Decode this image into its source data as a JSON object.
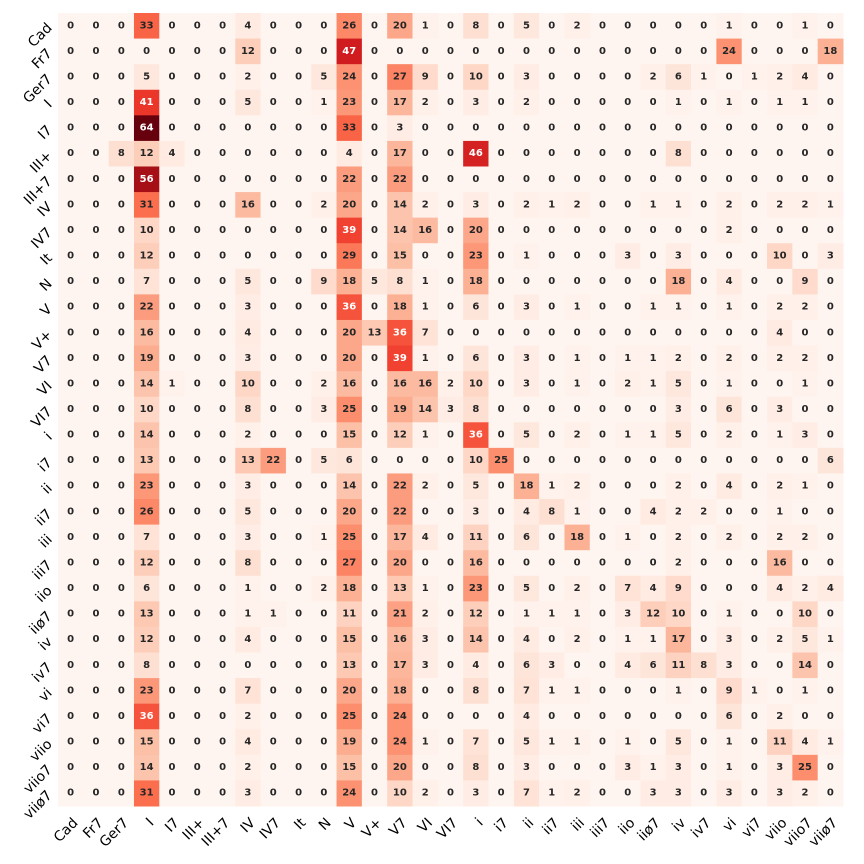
{
  "chart_data": {
    "type": "heatmap",
    "title": "",
    "xlabel": "",
    "ylabel": "",
    "legend": "none",
    "grid": false,
    "value_labels": true,
    "colormap": "Reds",
    "vmin": 0,
    "vmax": 64,
    "low_color": "#fff5f0",
    "high_color": "#67000d",
    "x_categories": [
      "Cad",
      "Fr7",
      "Ger7",
      "I",
      "I7",
      "III+",
      "III+7",
      "IV",
      "IV7",
      "It",
      "N",
      "V",
      "V+",
      "V7",
      "VI",
      "VI7",
      "i",
      "i7",
      "ii",
      "ii7",
      "iii",
      "iii7",
      "iio",
      "iiø7",
      "iv",
      "iv7",
      "vi",
      "vi7",
      "viio",
      "viio7",
      "viiø7"
    ],
    "y_categories": [
      "Cad",
      "Fr7",
      "Ger7",
      "I",
      "I7",
      "III+",
      "III+7",
      "IV",
      "IV7",
      "It",
      "N",
      "V",
      "V+",
      "V7",
      "VI",
      "VI7",
      "i",
      "i7",
      "ii",
      "ii7",
      "iii",
      "iii7",
      "iio",
      "iiø7",
      "iv",
      "iv7",
      "vi",
      "vi7",
      "viio",
      "viio7",
      "viiø7"
    ],
    "values": [
      [
        0,
        0,
        0,
        33,
        0,
        0,
        0,
        4,
        0,
        0,
        0,
        26,
        0,
        20,
        1,
        0,
        8,
        0,
        5,
        0,
        2,
        0,
        0,
        0,
        0,
        0,
        1,
        0,
        0,
        1,
        0
      ],
      [
        0,
        0,
        0,
        0,
        0,
        0,
        0,
        12,
        0,
        0,
        0,
        47,
        0,
        0,
        0,
        0,
        0,
        0,
        0,
        0,
        0,
        0,
        0,
        0,
        0,
        0,
        24,
        0,
        0,
        0,
        18
      ],
      [
        0,
        0,
        0,
        5,
        0,
        0,
        0,
        2,
        0,
        0,
        5,
        24,
        0,
        27,
        9,
        0,
        10,
        0,
        3,
        0,
        0,
        0,
        0,
        2,
        6,
        1,
        0,
        1,
        2,
        4,
        0
      ],
      [
        0,
        0,
        0,
        41,
        0,
        0,
        0,
        5,
        0,
        0,
        1,
        23,
        0,
        17,
        2,
        0,
        3,
        0,
        2,
        0,
        0,
        0,
        0,
        0,
        1,
        0,
        1,
        0,
        1,
        1,
        0
      ],
      [
        0,
        0,
        0,
        64,
        0,
        0,
        0,
        0,
        0,
        0,
        0,
        33,
        0,
        3,
        0,
        0,
        0,
        0,
        0,
        0,
        0,
        0,
        0,
        0,
        0,
        0,
        0,
        0,
        0,
        0,
        0
      ],
      [
        0,
        0,
        8,
        12,
        4,
        0,
        0,
        0,
        0,
        0,
        0,
        4,
        0,
        17,
        0,
        0,
        46,
        0,
        0,
        0,
        0,
        0,
        0,
        0,
        8,
        0,
        0,
        0,
        0,
        0,
        0
      ],
      [
        0,
        0,
        0,
        56,
        0,
        0,
        0,
        0,
        0,
        0,
        0,
        22,
        0,
        22,
        0,
        0,
        0,
        0,
        0,
        0,
        0,
        0,
        0,
        0,
        0,
        0,
        0,
        0,
        0,
        0,
        0
      ],
      [
        0,
        0,
        0,
        31,
        0,
        0,
        0,
        16,
        0,
        0,
        2,
        20,
        0,
        14,
        2,
        0,
        3,
        0,
        2,
        1,
        2,
        0,
        0,
        1,
        1,
        0,
        2,
        0,
        2,
        2,
        1
      ],
      [
        0,
        0,
        0,
        10,
        0,
        0,
        0,
        0,
        0,
        0,
        0,
        39,
        0,
        14,
        16,
        0,
        20,
        0,
        0,
        0,
        0,
        0,
        0,
        0,
        0,
        0,
        2,
        0,
        0,
        0,
        0
      ],
      [
        0,
        0,
        0,
        12,
        0,
        0,
        0,
        0,
        0,
        0,
        0,
        29,
        0,
        15,
        0,
        0,
        23,
        0,
        1,
        0,
        0,
        0,
        3,
        0,
        3,
        0,
        0,
        0,
        10,
        0,
        3
      ],
      [
        0,
        0,
        0,
        7,
        0,
        0,
        0,
        5,
        0,
        0,
        9,
        18,
        5,
        8,
        1,
        0,
        18,
        0,
        0,
        0,
        0,
        0,
        0,
        0,
        18,
        0,
        4,
        0,
        0,
        9,
        0
      ],
      [
        0,
        0,
        0,
        22,
        0,
        0,
        0,
        3,
        0,
        0,
        0,
        36,
        0,
        18,
        1,
        0,
        6,
        0,
        3,
        0,
        1,
        0,
        0,
        1,
        1,
        0,
        1,
        0,
        2,
        2,
        0
      ],
      [
        0,
        0,
        0,
        16,
        0,
        0,
        0,
        4,
        0,
        0,
        0,
        20,
        13,
        36,
        7,
        0,
        0,
        0,
        0,
        0,
        0,
        0,
        0,
        0,
        0,
        0,
        0,
        0,
        4,
        0,
        0
      ],
      [
        0,
        0,
        0,
        19,
        0,
        0,
        0,
        3,
        0,
        0,
        0,
        20,
        0,
        39,
        1,
        0,
        6,
        0,
        3,
        0,
        1,
        0,
        1,
        1,
        2,
        0,
        2,
        0,
        2,
        2,
        0
      ],
      [
        0,
        0,
        0,
        14,
        1,
        0,
        0,
        10,
        0,
        0,
        2,
        16,
        0,
        16,
        16,
        2,
        10,
        0,
        3,
        0,
        1,
        0,
        2,
        1,
        5,
        0,
        1,
        0,
        0,
        1,
        0
      ],
      [
        0,
        0,
        0,
        10,
        0,
        0,
        0,
        8,
        0,
        0,
        3,
        25,
        0,
        19,
        14,
        3,
        8,
        0,
        0,
        0,
        0,
        0,
        0,
        0,
        3,
        0,
        6,
        0,
        3,
        0,
        0
      ],
      [
        0,
        0,
        0,
        14,
        0,
        0,
        0,
        2,
        0,
        0,
        0,
        15,
        0,
        12,
        1,
        0,
        36,
        0,
        5,
        0,
        2,
        0,
        1,
        1,
        5,
        0,
        2,
        0,
        1,
        3,
        0
      ],
      [
        0,
        0,
        0,
        13,
        0,
        0,
        0,
        13,
        22,
        0,
        5,
        6,
        0,
        0,
        0,
        0,
        10,
        25,
        0,
        0,
        0,
        0,
        0,
        0,
        0,
        0,
        0,
        0,
        0,
        0,
        6
      ],
      [
        0,
        0,
        0,
        23,
        0,
        0,
        0,
        3,
        0,
        0,
        0,
        14,
        0,
        22,
        2,
        0,
        5,
        0,
        18,
        1,
        2,
        0,
        0,
        0,
        2,
        0,
        4,
        0,
        2,
        1,
        0
      ],
      [
        0,
        0,
        0,
        26,
        0,
        0,
        0,
        5,
        0,
        0,
        0,
        20,
        0,
        22,
        0,
        0,
        3,
        0,
        4,
        8,
        1,
        0,
        0,
        4,
        2,
        2,
        0,
        0,
        1,
        0,
        0
      ],
      [
        0,
        0,
        0,
        7,
        0,
        0,
        0,
        3,
        0,
        0,
        1,
        25,
        0,
        17,
        4,
        0,
        11,
        0,
        6,
        0,
        18,
        0,
        1,
        0,
        2,
        0,
        2,
        0,
        2,
        2,
        0
      ],
      [
        0,
        0,
        0,
        12,
        0,
        0,
        0,
        8,
        0,
        0,
        0,
        27,
        0,
        20,
        0,
        0,
        16,
        0,
        0,
        0,
        0,
        0,
        0,
        0,
        2,
        0,
        0,
        0,
        16,
        0,
        0
      ],
      [
        0,
        0,
        0,
        6,
        0,
        0,
        0,
        1,
        0,
        0,
        2,
        18,
        0,
        13,
        1,
        0,
        23,
        0,
        5,
        0,
        2,
        0,
        7,
        4,
        9,
        0,
        0,
        0,
        4,
        2,
        4
      ],
      [
        0,
        0,
        0,
        13,
        0,
        0,
        0,
        1,
        1,
        0,
        0,
        11,
        0,
        21,
        2,
        0,
        12,
        0,
        1,
        1,
        1,
        0,
        3,
        12,
        10,
        0,
        1,
        0,
        0,
        10,
        0
      ],
      [
        0,
        0,
        0,
        12,
        0,
        0,
        0,
        4,
        0,
        0,
        0,
        15,
        0,
        16,
        3,
        0,
        14,
        0,
        4,
        0,
        2,
        0,
        1,
        1,
        17,
        0,
        3,
        0,
        2,
        5,
        1
      ],
      [
        0,
        0,
        0,
        8,
        0,
        0,
        0,
        0,
        0,
        0,
        0,
        13,
        0,
        17,
        3,
        0,
        4,
        0,
        6,
        3,
        0,
        0,
        4,
        6,
        11,
        8,
        3,
        0,
        0,
        14,
        0
      ],
      [
        0,
        0,
        0,
        23,
        0,
        0,
        0,
        7,
        0,
        0,
        0,
        20,
        0,
        18,
        0,
        0,
        8,
        0,
        7,
        1,
        1,
        0,
        0,
        0,
        1,
        0,
        9,
        1,
        0,
        1,
        0
      ],
      [
        0,
        0,
        0,
        36,
        0,
        0,
        0,
        2,
        0,
        0,
        0,
        25,
        0,
        24,
        0,
        0,
        0,
        0,
        4,
        0,
        0,
        0,
        0,
        0,
        0,
        0,
        6,
        0,
        2,
        0,
        0
      ],
      [
        0,
        0,
        0,
        15,
        0,
        0,
        0,
        4,
        0,
        0,
        0,
        19,
        0,
        24,
        1,
        0,
        7,
        0,
        5,
        1,
        1,
        0,
        1,
        0,
        5,
        0,
        1,
        0,
        11,
        4,
        1
      ],
      [
        0,
        0,
        0,
        14,
        0,
        0,
        0,
        2,
        0,
        0,
        0,
        15,
        0,
        20,
        0,
        0,
        8,
        0,
        3,
        0,
        0,
        0,
        3,
        1,
        3,
        0,
        1,
        0,
        3,
        25,
        0
      ],
      [
        0,
        0,
        0,
        31,
        0,
        0,
        0,
        3,
        0,
        0,
        0,
        24,
        0,
        10,
        2,
        0,
        3,
        0,
        7,
        1,
        2,
        0,
        0,
        3,
        3,
        0,
        3,
        0,
        3,
        2,
        0
      ]
    ]
  }
}
